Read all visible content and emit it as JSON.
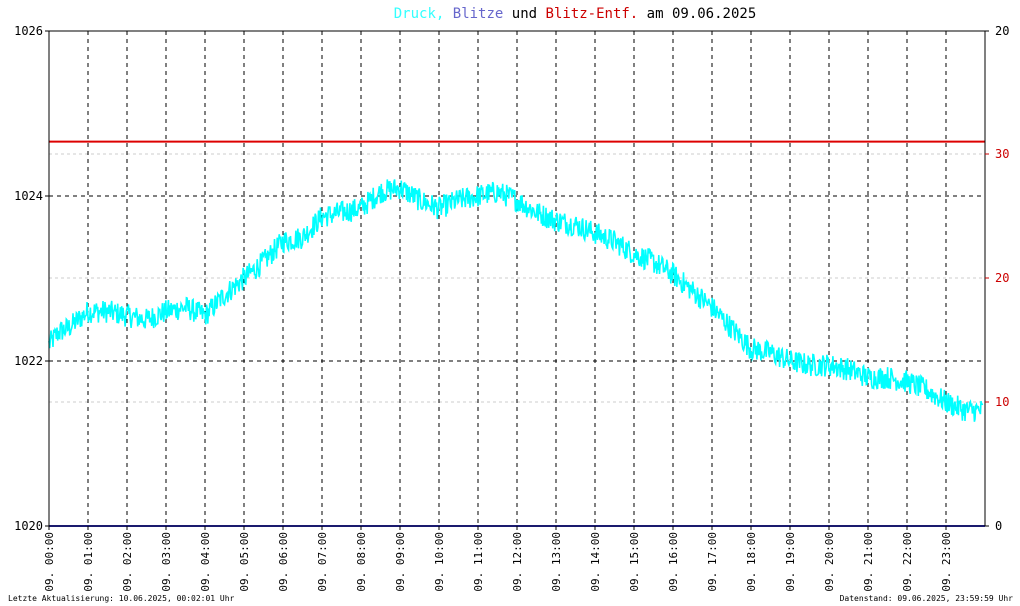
{
  "title": {
    "part1": "Druck,",
    "part2": "Blitze",
    "part3": "und",
    "part4": "Blitz-Entf.",
    "part5": "am 09.06.2025",
    "color1": "#33ffff",
    "color2": "#6666cc",
    "color3": "#000000",
    "color4": "#cc0000",
    "color5": "#000000"
  },
  "footer": {
    "left": "Letzte Aktualisierung: 10.06.2025, 00:02:01 Uhr",
    "right": "Datenstand: 09.06.2025, 23:59:59 Uhr"
  },
  "colors": {
    "pressure": "#00ffff",
    "strikes": "#1a1a6e",
    "distance": "#dd0000",
    "grid": "#000000",
    "grid_light": "#cccccc",
    "background": "#ffffff"
  },
  "chart_data": {
    "type": "line",
    "title": "Druck, Blitze und Blitz-Entf. am 09.06.2025",
    "x_tick_labels": [
      "09. 00:00",
      "09. 01:00",
      "09. 02:00",
      "09. 03:00",
      "09. 04:00",
      "09. 05:00",
      "09. 06:00",
      "09. 07:00",
      "09. 08:00",
      "09. 09:00",
      "09. 10:00",
      "09. 11:00",
      "09. 12:00",
      "09. 13:00",
      "09. 14:00",
      "09. 15:00",
      "09. 16:00",
      "09. 17:00",
      "09. 18:00",
      "09. 19:00",
      "09. 20:00",
      "09. 21:00",
      "09. 22:00",
      "09. 23:00"
    ],
    "x_range_hours": [
      0,
      24
    ],
    "y_left": {
      "ylim": [
        1020,
        1026
      ],
      "ticks": [
        1020,
        1022,
        1024,
        1026
      ]
    },
    "y_right_black": {
      "ylim": [
        0,
        20
      ],
      "ticks": [
        0,
        20
      ]
    },
    "y_right_red": {
      "ticks": [
        10,
        20,
        30
      ],
      "labels": [
        "10",
        "20",
        "30"
      ]
    },
    "grid": true,
    "series": [
      {
        "name": "Druck",
        "axis": "left",
        "x_hours": [
          0,
          0.25,
          0.5,
          1,
          1.5,
          2,
          2.5,
          3,
          3.5,
          4,
          4.5,
          5,
          5.5,
          6,
          6.5,
          7,
          7.5,
          8,
          8.5,
          9,
          9.5,
          10,
          10.5,
          11,
          11.5,
          12,
          12.5,
          13,
          13.5,
          14,
          14.5,
          15,
          15.5,
          16,
          16.5,
          17,
          17.5,
          18,
          18.5,
          19,
          19.5,
          20,
          20.5,
          21,
          21.5,
          22,
          22.5,
          23,
          23.5,
          23.95
        ],
        "values": [
          1022.2,
          1022.35,
          1022.4,
          1022.6,
          1022.6,
          1022.55,
          1022.5,
          1022.6,
          1022.65,
          1022.55,
          1022.8,
          1023.0,
          1023.2,
          1023.45,
          1023.5,
          1023.75,
          1023.8,
          1023.85,
          1024.05,
          1024.1,
          1023.95,
          1023.85,
          1023.95,
          1024.0,
          1024.05,
          1023.95,
          1023.8,
          1023.7,
          1023.65,
          1023.55,
          1023.45,
          1023.3,
          1023.2,
          1023.05,
          1022.85,
          1022.65,
          1022.4,
          1022.15,
          1022.1,
          1022.0,
          1021.95,
          1021.95,
          1021.9,
          1021.8,
          1021.8,
          1021.75,
          1021.65,
          1021.5,
          1021.4,
          1021.4
        ]
      },
      {
        "name": "Blitze",
        "axis": "right_black",
        "x_hours": [
          0,
          24
        ],
        "values": [
          0,
          0
        ]
      },
      {
        "name": "Blitz-Entf.",
        "axis": "right_red",
        "x_hours": [
          0,
          24
        ],
        "values": [
          31,
          31
        ]
      }
    ]
  }
}
